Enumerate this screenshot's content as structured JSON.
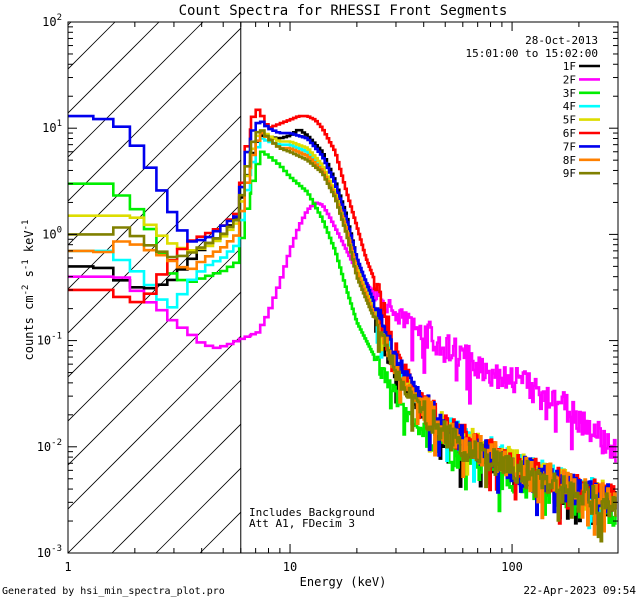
{
  "chart_data": {
    "type": "line",
    "title": "Count Spectra for RHESSI Front Segments",
    "xlabel": "Energy (keV)",
    "ylabel_parts": {
      "base": "counts cm",
      "exp1": "-2",
      "mid": " s",
      "exp2": "-1",
      "end": " keV",
      "exp3": "-1"
    },
    "xscale": "log",
    "yscale": "log",
    "xlim": [
      1.0,
      300.0
    ],
    "ylim": [
      0.001,
      100.0
    ],
    "x_ticks": [
      {
        "value": 1,
        "label": "1"
      },
      {
        "value": 10,
        "label": "10"
      },
      {
        "value": 100,
        "label": "100"
      }
    ],
    "y_ticks": [
      {
        "value": 0.001,
        "base": "10",
        "exp": "-3"
      },
      {
        "value": 0.01,
        "base": "10",
        "exp": "-2"
      },
      {
        "value": 0.1,
        "base": "10",
        "exp": "-1"
      },
      {
        "value": 1,
        "base": "10",
        "exp": "0"
      },
      {
        "value": 10,
        "base": "10",
        "exp": "1"
      },
      {
        "value": 100,
        "base": "10",
        "exp": "2"
      }
    ],
    "excluded_region_keV": [
      1.0,
      6.0
    ],
    "date": "28-Oct-2013",
    "time_range": "15:01:00 to 15:02:00",
    "annotations": [
      "Includes Background",
      "Att A1, FDecim 3"
    ],
    "series": [
      {
        "name": "1F",
        "color": "#000000",
        "points": [
          [
            1.2,
            0.5
          ],
          [
            1.5,
            0.48
          ],
          [
            1.8,
            0.35
          ],
          [
            2.2,
            0.3
          ],
          [
            2.6,
            0.33
          ],
          [
            3.0,
            0.38
          ],
          [
            3.5,
            0.55
          ],
          [
            4.2,
            0.8
          ],
          [
            5.0,
            1.0
          ],
          [
            5.8,
            1.5
          ],
          [
            6.5,
            4.0
          ],
          [
            7.0,
            7.0
          ],
          [
            7.5,
            8.5
          ],
          [
            8.0,
            8.3
          ],
          [
            9.0,
            8.0
          ],
          [
            10.0,
            8.5
          ],
          [
            11.0,
            9.8
          ],
          [
            12.0,
            8.5
          ],
          [
            14.0,
            6.0
          ],
          [
            16.0,
            3.2
          ],
          [
            18.0,
            1.5
          ],
          [
            20.0,
            0.6
          ],
          [
            22.0,
            0.3
          ],
          [
            25.0,
            0.12
          ],
          [
            30.0,
            0.05
          ],
          [
            35.0,
            0.03
          ],
          [
            40.0,
            0.022
          ],
          [
            50.0,
            0.013
          ],
          [
            60.0,
            0.01
          ],
          [
            80.0,
            0.0075
          ],
          [
            100.0,
            0.006
          ],
          [
            150.0,
            0.0045
          ],
          [
            200.0,
            0.0035
          ],
          [
            280.0,
            0.003
          ]
        ]
      },
      {
        "name": "2F",
        "color": "#ff00ff",
        "points": [
          [
            1.2,
            0.4
          ],
          [
            1.5,
            0.4
          ],
          [
            1.8,
            0.39
          ],
          [
            2.2,
            0.25
          ],
          [
            2.6,
            0.2
          ],
          [
            3.0,
            0.15
          ],
          [
            3.5,
            0.12
          ],
          [
            4.0,
            0.095
          ],
          [
            4.6,
            0.085
          ],
          [
            5.2,
            0.09
          ],
          [
            5.8,
            0.1
          ],
          [
            6.5,
            0.11
          ],
          [
            7.2,
            0.12
          ],
          [
            8.0,
            0.18
          ],
          [
            9.0,
            0.35
          ],
          [
            10.0,
            0.7
          ],
          [
            11.0,
            1.2
          ],
          [
            12.0,
            1.7
          ],
          [
            13.0,
            2.0
          ],
          [
            14.0,
            1.9
          ],
          [
            15.0,
            1.5
          ],
          [
            17.0,
            0.9
          ],
          [
            20.0,
            0.45
          ],
          [
            25.0,
            0.25
          ],
          [
            30.0,
            0.18
          ],
          [
            40.0,
            0.12
          ],
          [
            50.0,
            0.085
          ],
          [
            60.0,
            0.07
          ],
          [
            80.0,
            0.05
          ],
          [
            100.0,
            0.045
          ],
          [
            150.0,
            0.03
          ],
          [
            200.0,
            0.018
          ],
          [
            250.0,
            0.012
          ],
          [
            300.0,
            0.008
          ]
        ]
      },
      {
        "name": "3F",
        "color": "#00ee00",
        "points": [
          [
            1.2,
            3.0
          ],
          [
            1.5,
            3.0
          ],
          [
            1.8,
            2.2
          ],
          [
            2.2,
            1.5
          ],
          [
            2.6,
            0.7
          ],
          [
            3.0,
            0.4
          ],
          [
            3.5,
            0.35
          ],
          [
            4.2,
            0.4
          ],
          [
            5.0,
            0.45
          ],
          [
            5.8,
            0.55
          ],
          [
            6.5,
            2.0
          ],
          [
            7.0,
            4.0
          ],
          [
            7.5,
            6.0
          ],
          [
            8.0,
            5.5
          ],
          [
            9.0,
            4.5
          ],
          [
            10.0,
            3.5
          ],
          [
            12.0,
            2.5
          ],
          [
            14.0,
            1.4
          ],
          [
            16.0,
            0.7
          ],
          [
            18.0,
            0.3
          ],
          [
            20.0,
            0.15
          ],
          [
            25.0,
            0.06
          ],
          [
            30.0,
            0.03
          ],
          [
            35.0,
            0.018
          ],
          [
            40.0,
            0.014
          ],
          [
            50.0,
            0.01
          ],
          [
            60.0,
            0.008
          ],
          [
            80.0,
            0.006
          ],
          [
            100.0,
            0.005
          ],
          [
            150.0,
            0.0038
          ],
          [
            200.0,
            0.003
          ],
          [
            280.0,
            0.0025
          ]
        ]
      },
      {
        "name": "4F",
        "color": "#00ffff",
        "points": [
          [
            1.2,
            0.7
          ],
          [
            1.5,
            0.7
          ],
          [
            1.8,
            0.55
          ],
          [
            2.2,
            0.4
          ],
          [
            2.6,
            0.25
          ],
          [
            3.0,
            0.2
          ],
          [
            3.5,
            0.35
          ],
          [
            4.2,
            0.5
          ],
          [
            5.0,
            0.6
          ],
          [
            5.8,
            0.8
          ],
          [
            6.5,
            3.0
          ],
          [
            7.0,
            6.0
          ],
          [
            7.5,
            8.0
          ],
          [
            8.0,
            7.5
          ],
          [
            9.0,
            7.0
          ],
          [
            10.0,
            7.0
          ],
          [
            12.0,
            6.0
          ],
          [
            14.0,
            4.0
          ],
          [
            16.0,
            2.4
          ],
          [
            18.0,
            1.2
          ],
          [
            20.0,
            0.5
          ],
          [
            25.0,
            0.15
          ],
          [
            30.0,
            0.06
          ],
          [
            35.0,
            0.035
          ],
          [
            40.0,
            0.025
          ],
          [
            50.0,
            0.015
          ],
          [
            60.0,
            0.012
          ],
          [
            80.0,
            0.009
          ],
          [
            100.0,
            0.007
          ],
          [
            150.0,
            0.005
          ],
          [
            200.0,
            0.004
          ],
          [
            280.0,
            0.0033
          ]
        ]
      },
      {
        "name": "5F",
        "color": "#dddd00",
        "points": [
          [
            1.2,
            1.5
          ],
          [
            1.5,
            1.5
          ],
          [
            1.8,
            1.5
          ],
          [
            2.2,
            1.4
          ],
          [
            2.6,
            1.0
          ],
          [
            3.0,
            0.8
          ],
          [
            3.5,
            0.7
          ],
          [
            4.2,
            0.75
          ],
          [
            5.0,
            0.95
          ],
          [
            5.8,
            1.3
          ],
          [
            6.5,
            4.0
          ],
          [
            7.0,
            8.0
          ],
          [
            7.5,
            9.5
          ],
          [
            8.0,
            8.5
          ],
          [
            9.0,
            7.5
          ],
          [
            10.0,
            7.5
          ],
          [
            12.0,
            6.5
          ],
          [
            14.0,
            4.5
          ],
          [
            16.0,
            2.5
          ],
          [
            18.0,
            1.2
          ],
          [
            20.0,
            0.5
          ],
          [
            25.0,
            0.15
          ],
          [
            30.0,
            0.06
          ],
          [
            35.0,
            0.035
          ],
          [
            40.0,
            0.025
          ],
          [
            50.0,
            0.015
          ],
          [
            60.0,
            0.012
          ],
          [
            80.0,
            0.009
          ],
          [
            100.0,
            0.007
          ],
          [
            150.0,
            0.005
          ],
          [
            200.0,
            0.004
          ],
          [
            280.0,
            0.0033
          ]
        ]
      },
      {
        "name": "6F",
        "color": "#ff0000",
        "points": [
          [
            1.2,
            0.3
          ],
          [
            1.5,
            0.3
          ],
          [
            1.8,
            0.25
          ],
          [
            2.2,
            0.22
          ],
          [
            2.6,
            0.4
          ],
          [
            3.0,
            0.6
          ],
          [
            3.5,
            0.85
          ],
          [
            4.2,
            1.0
          ],
          [
            5.0,
            1.2
          ],
          [
            5.8,
            1.6
          ],
          [
            6.5,
            8.0
          ],
          [
            7.0,
            16.0
          ],
          [
            7.5,
            13.0
          ],
          [
            8.0,
            10.0
          ],
          [
            9.0,
            11.0
          ],
          [
            10.0,
            12.0
          ],
          [
            11.0,
            13.0
          ],
          [
            12.0,
            13.0
          ],
          [
            13.0,
            12.0
          ],
          [
            14.0,
            10.0
          ],
          [
            16.0,
            6.0
          ],
          [
            18.0,
            2.5
          ],
          [
            20.0,
            1.2
          ],
          [
            22.0,
            0.6
          ],
          [
            25.0,
            0.3
          ],
          [
            30.0,
            0.08
          ],
          [
            35.0,
            0.04
          ],
          [
            40.0,
            0.025
          ],
          [
            50.0,
            0.015
          ],
          [
            60.0,
            0.012
          ],
          [
            80.0,
            0.009
          ],
          [
            100.0,
            0.007
          ],
          [
            150.0,
            0.005
          ],
          [
            200.0,
            0.004
          ],
          [
            280.0,
            0.0033
          ]
        ]
      },
      {
        "name": "7F",
        "color": "#0000ee",
        "points": [
          [
            1.2,
            13.0
          ],
          [
            1.5,
            12.0
          ],
          [
            1.8,
            10.0
          ],
          [
            2.2,
            5.5
          ],
          [
            2.6,
            2.8
          ],
          [
            3.0,
            1.5
          ],
          [
            3.5,
            0.85
          ],
          [
            4.2,
            0.9
          ],
          [
            5.0,
            1.2
          ],
          [
            5.8,
            1.5
          ],
          [
            6.5,
            7.0
          ],
          [
            7.0,
            11.0
          ],
          [
            7.5,
            11.5
          ],
          [
            8.0,
            10.0
          ],
          [
            9.0,
            9.0
          ],
          [
            10.0,
            9.0
          ],
          [
            12.0,
            8.0
          ],
          [
            14.0,
            5.5
          ],
          [
            16.0,
            3.0
          ],
          [
            18.0,
            1.4
          ],
          [
            20.0,
            0.6
          ],
          [
            25.0,
            0.18
          ],
          [
            30.0,
            0.07
          ],
          [
            35.0,
            0.04
          ],
          [
            40.0,
            0.025
          ],
          [
            50.0,
            0.015
          ],
          [
            60.0,
            0.012
          ],
          [
            80.0,
            0.008
          ],
          [
            100.0,
            0.0065
          ],
          [
            150.0,
            0.0048
          ],
          [
            200.0,
            0.0038
          ],
          [
            280.0,
            0.0032
          ]
        ]
      },
      {
        "name": "8F",
        "color": "#ff8000",
        "points": [
          [
            1.2,
            0.7
          ],
          [
            1.5,
            0.68
          ],
          [
            1.8,
            0.9
          ],
          [
            2.2,
            0.75
          ],
          [
            2.6,
            0.65
          ],
          [
            3.0,
            0.55
          ],
          [
            3.5,
            0.45
          ],
          [
            4.2,
            0.6
          ],
          [
            5.0,
            0.75
          ],
          [
            5.8,
            1.0
          ],
          [
            6.5,
            3.5
          ],
          [
            7.0,
            7.0
          ],
          [
            7.5,
            9.0
          ],
          [
            8.0,
            8.0
          ],
          [
            9.0,
            6.5
          ],
          [
            10.0,
            6.5
          ],
          [
            12.0,
            5.5
          ],
          [
            14.0,
            4.0
          ],
          [
            16.0,
            2.3
          ],
          [
            18.0,
            1.1
          ],
          [
            20.0,
            0.45
          ],
          [
            25.0,
            0.14
          ],
          [
            30.0,
            0.055
          ],
          [
            35.0,
            0.032
          ],
          [
            40.0,
            0.023
          ],
          [
            50.0,
            0.014
          ],
          [
            60.0,
            0.011
          ],
          [
            80.0,
            0.0085
          ],
          [
            100.0,
            0.0068
          ],
          [
            150.0,
            0.005
          ],
          [
            200.0,
            0.004
          ],
          [
            280.0,
            0.0033
          ]
        ]
      },
      {
        "name": "9F",
        "color": "#808000",
        "points": [
          [
            1.2,
            1.0
          ],
          [
            1.5,
            1.0
          ],
          [
            1.8,
            1.2
          ],
          [
            2.2,
            0.85
          ],
          [
            2.6,
            0.7
          ],
          [
            3.0,
            0.6
          ],
          [
            3.5,
            0.65
          ],
          [
            4.2,
            0.8
          ],
          [
            5.0,
            1.0
          ],
          [
            5.8,
            1.4
          ],
          [
            6.5,
            5.0
          ],
          [
            7.0,
            9.0
          ],
          [
            7.5,
            9.5
          ],
          [
            8.0,
            8.0
          ],
          [
            9.0,
            6.5
          ],
          [
            10.0,
            6.0
          ],
          [
            12.0,
            5.0
          ],
          [
            14.0,
            3.8
          ],
          [
            16.0,
            2.2
          ],
          [
            18.0,
            1.0
          ],
          [
            20.0,
            0.4
          ],
          [
            25.0,
            0.13
          ],
          [
            30.0,
            0.05
          ],
          [
            35.0,
            0.03
          ],
          [
            40.0,
            0.022
          ],
          [
            50.0,
            0.013
          ],
          [
            60.0,
            0.01
          ],
          [
            80.0,
            0.0075
          ],
          [
            100.0,
            0.006
          ],
          [
            150.0,
            0.0045
          ],
          [
            200.0,
            0.0035
          ],
          [
            280.0,
            0.0028
          ]
        ]
      }
    ]
  },
  "footer": {
    "generator": "Generated by hsi_min_spectra_plot.pro",
    "timestamp": "22-Apr-2023 09:54"
  }
}
